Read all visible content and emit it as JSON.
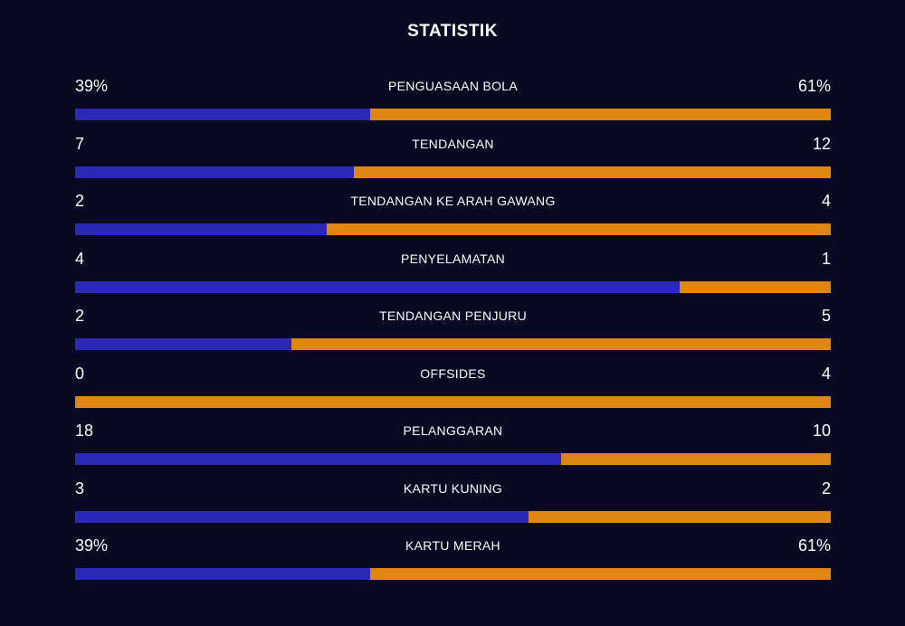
{
  "header": {
    "title": "STATISTIK"
  },
  "colors": {
    "background": "#080822",
    "home": "#2a28b5",
    "away": "#df8512",
    "text": "#ffffff"
  },
  "chart_data": {
    "type": "bar",
    "orientation": "horizontal-stacked-comparison",
    "title": "STATISTIK",
    "categories": [
      "PENGUASAAN BOLA",
      "TENDANGAN",
      "TENDANGAN KE ARAH GAWANG",
      "PENYELAMATAN",
      "TENDANGAN PENJURU",
      "OFFSIDES",
      "PELANGGARAN",
      "KARTU KUNING",
      "KARTU MERAH"
    ],
    "rows": [
      {
        "label": "PENGUASAAN BOLA",
        "home_label": "39%",
        "away_label": "61%",
        "home": 39,
        "away": 61
      },
      {
        "label": "TENDANGAN",
        "home_label": "7",
        "away_label": "12",
        "home": 7,
        "away": 12
      },
      {
        "label": "TENDANGAN KE ARAH GAWANG",
        "home_label": "2",
        "away_label": "4",
        "home": 2,
        "away": 4
      },
      {
        "label": "PENYELAMATAN",
        "home_label": "4",
        "away_label": "1",
        "home": 4,
        "away": 1
      },
      {
        "label": "TENDANGAN PENJURU",
        "home_label": "2",
        "away_label": "5",
        "home": 2,
        "away": 5
      },
      {
        "label": "OFFSIDES",
        "home_label": "0",
        "away_label": "4",
        "home": 0,
        "away": 4
      },
      {
        "label": "PELANGGARAN",
        "home_label": "18",
        "away_label": "10",
        "home": 18,
        "away": 10
      },
      {
        "label": "KARTU KUNING",
        "home_label": "3",
        "away_label": "2",
        "home": 3,
        "away": 2
      },
      {
        "label": "KARTU MERAH",
        "home_label": "39%",
        "away_label": "61%",
        "home": 39,
        "away": 61
      }
    ],
    "legend": "none",
    "grid": false
  }
}
